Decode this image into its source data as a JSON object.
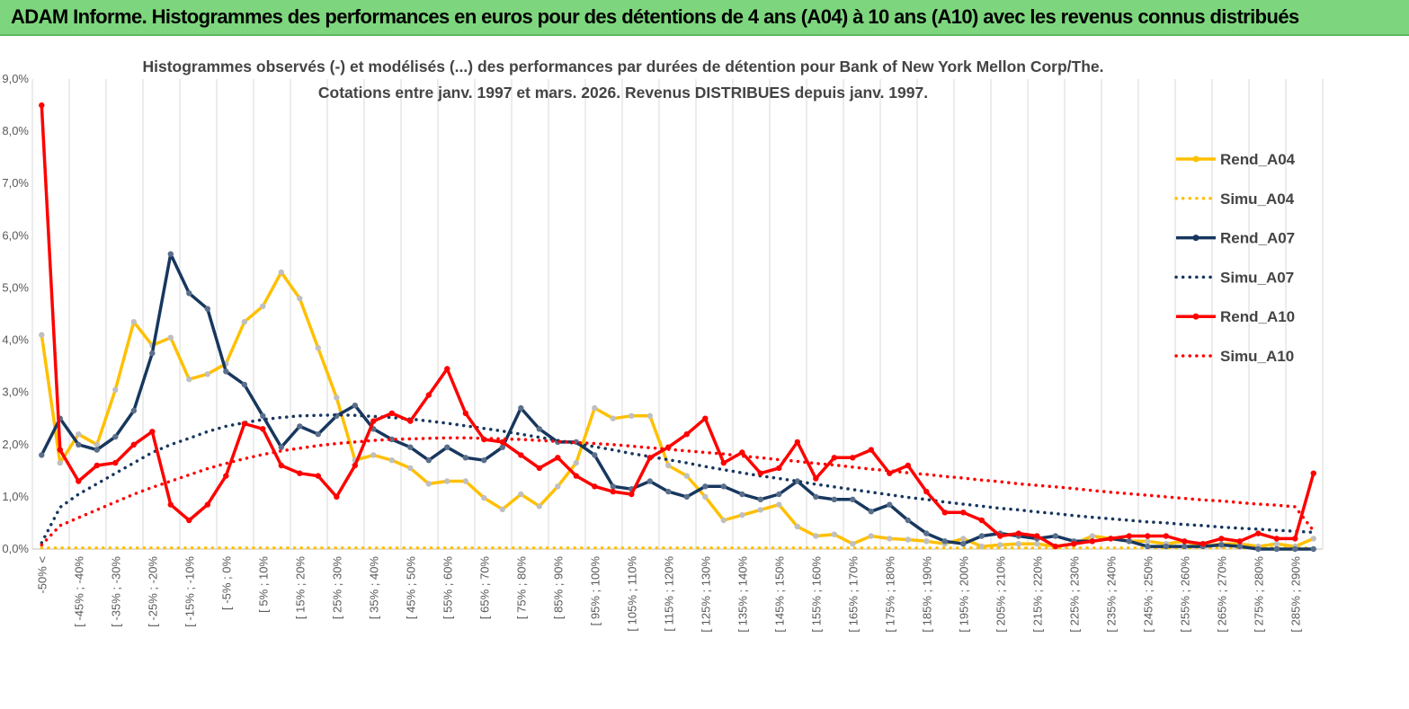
{
  "banner": {
    "title": "ADAM Informe. Histogrammes des performances en euros pour des détentions de 4 ans (A04) à 10 ans (A10) avec les revenus connus distribués",
    "color": "#7dd67d"
  },
  "chart_data": {
    "type": "line",
    "title": "Histogrammes observés (-)  et modélisés (...) des performances par durées de détention pour Bank of New York Mellon Corp/The.",
    "subtitle": "Cotations entre janv. 1997 et mars. 2026. Revenus DISTRIBUES depuis janv. 1997.",
    "xlabel": "",
    "ylabel": "",
    "ylim": [
      0,
      9
    ],
    "y_ticks": [
      "0,0%",
      "1,0%",
      "2,0%",
      "3,0%",
      "4,0%",
      "5,0%",
      "6,0%",
      "7,0%",
      "8,0%",
      "9,0%"
    ],
    "grid": true,
    "legend_position": "right",
    "x_tick_labels": [
      "-50% <",
      "[ -45% ; -40%",
      "[ -35% ; -30%",
      "[ -25% ; -20%",
      "[ -15% ; -10%",
      "[ -5% ; 0%",
      "[ 5% ; 10%",
      "[ 15% ; 20%",
      "[ 25% ; 30%",
      "[ 35% ; 40%",
      "[ 45% ; 50%",
      "[ 55% ; 60%",
      "[ 65% ; 70%",
      "[ 75% ; 80%",
      "[ 85% ; 90%",
      "[ 95% ; 100%",
      "[ 105% ; 110%",
      "[ 115% ; 120%",
      "[ 125% ; 130%",
      "[ 135% ; 140%",
      "[ 145% ; 150%",
      "[ 155% ; 160%",
      "[ 165% ; 170%",
      "[ 175% ; 180%",
      "[ 185% ; 190%",
      "[ 195% ; 200%",
      "[ 205% ; 210%",
      "[ 215% ; 220%",
      "[ 225% ; 230%",
      "[ 235% ; 240%",
      "[ 245% ; 250%",
      "[ 255% ; 260%",
      "[ 265% ; 270%",
      "[ 275% ; 280%",
      "[ 285% ; 290%"
    ],
    "n_points": 70,
    "series": [
      {
        "name": "Rend_A04",
        "style": "solid",
        "color": "#ffc000",
        "values": [
          4.1,
          1.65,
          2.2,
          2.0,
          3.05,
          4.35,
          3.9,
          4.05,
          3.25,
          3.35,
          3.55,
          4.35,
          4.65,
          5.3,
          4.8,
          3.85,
          2.9,
          1.7,
          1.8,
          1.7,
          1.55,
          1.25,
          1.3,
          1.3,
          0.98,
          0.76,
          1.05,
          0.82,
          1.2,
          1.65,
          2.7,
          2.5,
          2.55,
          2.55,
          1.6,
          1.4,
          1.0,
          0.55,
          0.65,
          0.75,
          0.85,
          0.43,
          0.25,
          0.28,
          0.1,
          0.25,
          0.2,
          0.18,
          0.15,
          0.1,
          0.2,
          0.05,
          0.08,
          0.1,
          0.1,
          0.05,
          0.1,
          0.25,
          0.2,
          0.15,
          0.15,
          0.1,
          0.15,
          0.05,
          0.1,
          0.1,
          0.05,
          0.1,
          0.05,
          0.2
        ]
      },
      {
        "name": "Simu_A04",
        "style": "dotted",
        "color": "#ffc000",
        "values": [
          0.02,
          0.02,
          0.02,
          0.02,
          0.02,
          0.02,
          0.02,
          0.02,
          0.02,
          0.02,
          0.02,
          0.02,
          0.02,
          0.02,
          0.02,
          0.02,
          0.02,
          0.02,
          0.02,
          0.02,
          0.02,
          0.02,
          0.02,
          0.02,
          0.02,
          0.02,
          0.02,
          0.02,
          0.02,
          0.02,
          0.02,
          0.02,
          0.02,
          0.02,
          0.02,
          0.02,
          0.02,
          0.02,
          0.02,
          0.02,
          0.02,
          0.02,
          0.02,
          0.02,
          0.02,
          0.02,
          0.02,
          0.02,
          0.02,
          0.02,
          0.02,
          0.02,
          0.02,
          0.02,
          0.02,
          0.02,
          0.02,
          0.02,
          0.02,
          0.02,
          0.02,
          0.02,
          0.02,
          0.02,
          0.02,
          0.02,
          0.02,
          0.02,
          0.02,
          0.02
        ]
      },
      {
        "name": "Rend_A07",
        "style": "solid",
        "color": "#17375e",
        "values": [
          1.8,
          2.5,
          2.0,
          1.9,
          2.15,
          2.65,
          3.75,
          5.65,
          4.9,
          4.6,
          3.4,
          3.15,
          2.55,
          1.95,
          2.35,
          2.2,
          2.55,
          2.75,
          2.3,
          2.1,
          1.95,
          1.7,
          1.95,
          1.75,
          1.7,
          1.95,
          2.7,
          2.3,
          2.05,
          2.05,
          1.8,
          1.2,
          1.15,
          1.3,
          1.1,
          1.0,
          1.2,
          1.2,
          1.05,
          0.95,
          1.05,
          1.3,
          1.0,
          0.95,
          0.95,
          0.72,
          0.85,
          0.55,
          0.3,
          0.15,
          0.1,
          0.25,
          0.3,
          0.25,
          0.2,
          0.25,
          0.15,
          0.15,
          0.2,
          0.15,
          0.05,
          0.05,
          0.05,
          0.05,
          0.08,
          0.05,
          0.0,
          0.0,
          0.0,
          0.0
        ]
      },
      {
        "name": "Simu_A07",
        "style": "dotted",
        "color": "#17375e",
        "values": [
          0.12,
          0.8,
          1.05,
          1.25,
          1.45,
          1.65,
          1.85,
          2.0,
          2.12,
          2.25,
          2.35,
          2.42,
          2.48,
          2.52,
          2.55,
          2.56,
          2.57,
          2.56,
          2.54,
          2.52,
          2.49,
          2.45,
          2.41,
          2.36,
          2.31,
          2.26,
          2.2,
          2.14,
          2.08,
          2.02,
          1.96,
          1.9,
          1.83,
          1.77,
          1.71,
          1.65,
          1.58,
          1.52,
          1.46,
          1.4,
          1.35,
          1.3,
          1.24,
          1.19,
          1.14,
          1.09,
          1.04,
          0.99,
          0.95,
          0.9,
          0.86,
          0.82,
          0.78,
          0.75,
          0.71,
          0.68,
          0.64,
          0.61,
          0.58,
          0.55,
          0.52,
          0.5,
          0.47,
          0.45,
          0.42,
          0.4,
          0.38,
          0.36,
          0.34,
          0.32
        ]
      },
      {
        "name": "Rend_A10",
        "style": "solid",
        "color": "#ff0000",
        "values": [
          8.5,
          1.9,
          1.3,
          1.6,
          1.65,
          2.0,
          2.25,
          0.85,
          0.55,
          0.85,
          1.4,
          2.4,
          2.3,
          1.6,
          1.45,
          1.4,
          1.0,
          1.6,
          2.45,
          2.6,
          2.45,
          2.95,
          3.45,
          2.6,
          2.1,
          2.05,
          1.8,
          1.55,
          1.75,
          1.4,
          1.2,
          1.1,
          1.05,
          1.75,
          1.95,
          2.2,
          2.5,
          1.65,
          1.85,
          1.45,
          1.55,
          2.05,
          1.35,
          1.75,
          1.75,
          1.9,
          1.45,
          1.6,
          1.1,
          0.7,
          0.7,
          0.55,
          0.25,
          0.3,
          0.25,
          0.05,
          0.1,
          0.15,
          0.2,
          0.25,
          0.25,
          0.25,
          0.15,
          0.1,
          0.2,
          0.15,
          0.3,
          0.2,
          0.2,
          1.45
        ]
      },
      {
        "name": "Simu_A10",
        "style": "dotted",
        "color": "#ff0000",
        "values": [
          0.08,
          0.45,
          0.6,
          0.75,
          0.9,
          1.05,
          1.18,
          1.3,
          1.42,
          1.54,
          1.64,
          1.73,
          1.81,
          1.88,
          1.93,
          1.98,
          2.02,
          2.05,
          2.08,
          2.1,
          2.11,
          2.12,
          2.13,
          2.13,
          2.12,
          2.11,
          2.1,
          2.08,
          2.06,
          2.04,
          2.02,
          2.0,
          1.97,
          1.94,
          1.91,
          1.88,
          1.85,
          1.82,
          1.78,
          1.75,
          1.71,
          1.68,
          1.64,
          1.61,
          1.57,
          1.53,
          1.5,
          1.46,
          1.43,
          1.39,
          1.36,
          1.32,
          1.29,
          1.25,
          1.22,
          1.19,
          1.16,
          1.12,
          1.09,
          1.06,
          1.03,
          1.0,
          0.97,
          0.94,
          0.92,
          0.89,
          0.86,
          0.84,
          0.81,
          0.35
        ]
      }
    ]
  }
}
